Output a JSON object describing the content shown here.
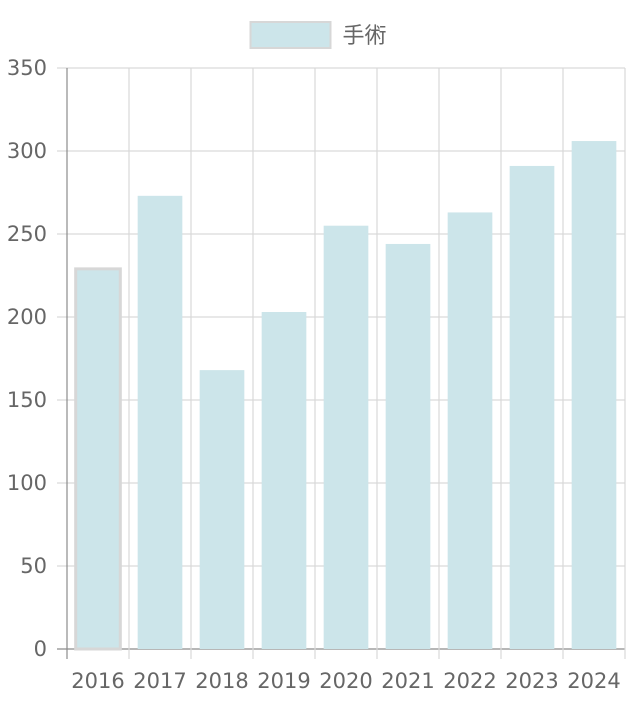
{
  "chart_data": {
    "type": "bar",
    "categories": [
      "2016",
      "2017",
      "2018",
      "2019",
      "2020",
      "2021",
      "2022",
      "2023",
      "2024"
    ],
    "series": [
      {
        "name": "手術",
        "values": [
          229,
          273,
          168,
          203,
          255,
          244,
          263,
          291,
          306
        ]
      }
    ],
    "legend": {
      "position": "top",
      "label": "手術"
    },
    "ylim": [
      0,
      350
    ],
    "yticks": [
      0,
      50,
      100,
      150,
      200,
      250,
      300,
      350
    ],
    "grid": true,
    "bar_color": "#cce5ea",
    "bar_border_color": "#d7d7d7",
    "grid_color": "#d9d9d9",
    "axis_color": "#8c8c8c",
    "text_color": "#666666"
  }
}
